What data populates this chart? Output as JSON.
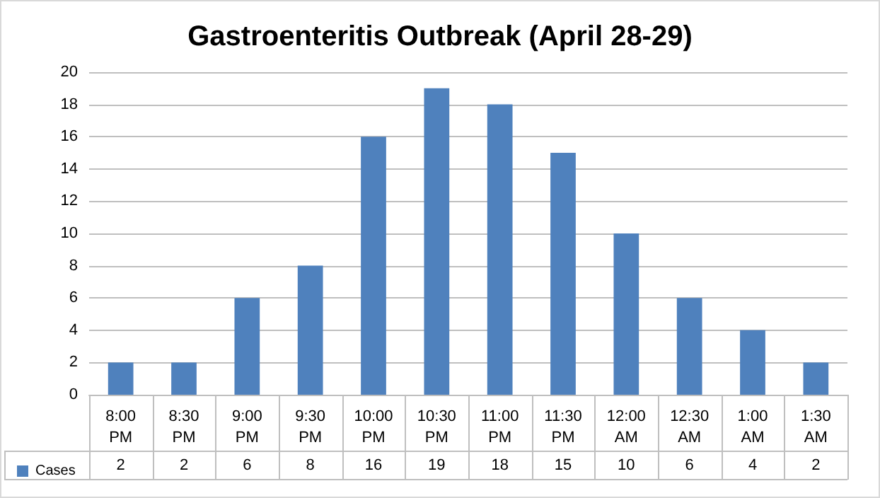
{
  "chart_data": {
    "type": "bar",
    "title": "Gastroenteritis Outbreak (April 28-29)",
    "categories": [
      "8:00 PM",
      "8:30 PM",
      "9:00 PM",
      "9:30 PM",
      "10:00 PM",
      "10:30 PM",
      "11:00 PM",
      "11:30 PM",
      "12:00 AM",
      "12:30 AM",
      "1:00 AM",
      "1:30 AM"
    ],
    "series": [
      {
        "name": "Cases",
        "color": "#4f81bd",
        "values": [
          2,
          2,
          6,
          8,
          16,
          19,
          18,
          15,
          10,
          6,
          4,
          2
        ]
      }
    ],
    "ylim": [
      0,
      20
    ],
    "yticks": [
      0,
      2,
      4,
      6,
      8,
      10,
      12,
      14,
      16,
      18,
      20
    ],
    "grid": "y",
    "legend": "bottom left",
    "data_labels": true
  }
}
